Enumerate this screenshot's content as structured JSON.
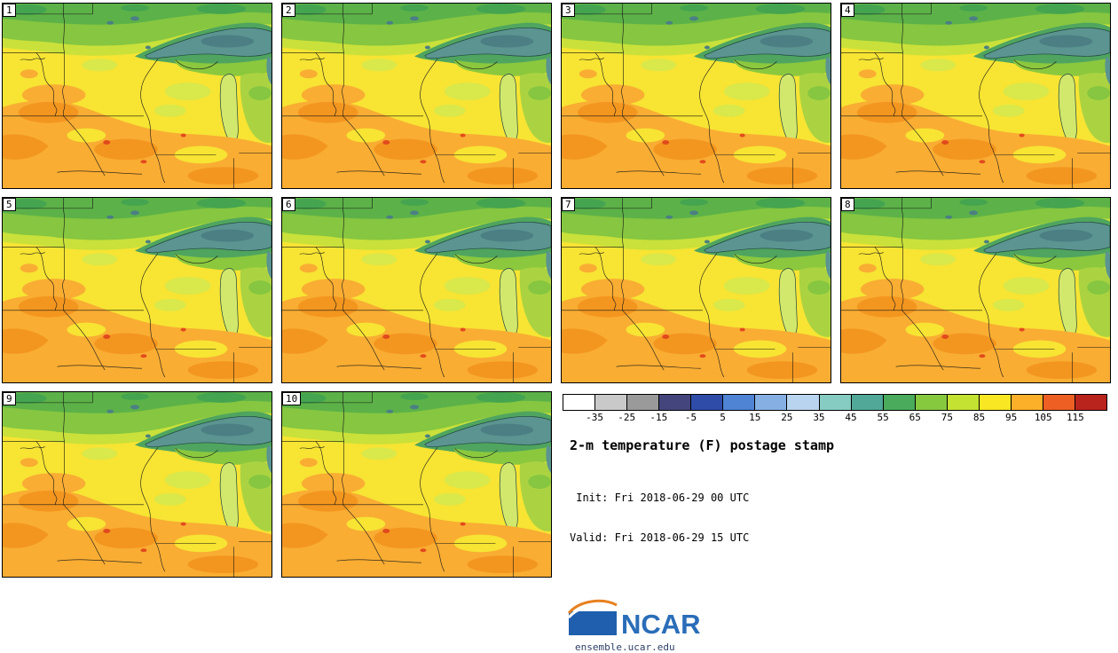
{
  "panels": [
    {
      "label": "1"
    },
    {
      "label": "2"
    },
    {
      "label": "3"
    },
    {
      "label": "4"
    },
    {
      "label": "5"
    },
    {
      "label": "6"
    },
    {
      "label": "7"
    },
    {
      "label": "8"
    },
    {
      "label": "9"
    },
    {
      "label": "10"
    }
  ],
  "colorbar": {
    "ticks": [
      "-35",
      "-25",
      "-15",
      "-5",
      "5",
      "15",
      "25",
      "35",
      "45",
      "55",
      "65",
      "75",
      "85",
      "95",
      "105",
      "115"
    ],
    "cell_colors": [
      "#ffffff",
      "#c9c9c9",
      "#9a9a9a",
      "#45457e",
      "#2f4da8",
      "#4f83d4",
      "#86b0e4",
      "#b9d4ee",
      "#86ccc3",
      "#52a898",
      "#4aab5c",
      "#86c93f",
      "#c4e232",
      "#f8e722",
      "#fcaf28",
      "#ee5f24",
      "#b9241d"
    ]
  },
  "info": {
    "title": "2-m temperature (F) postage stamp",
    "init_line": " Init: Fri 2018-06-29 00 UTC",
    "valid_line": "Valid: Fri 2018-06-29 15 UTC"
  },
  "logo": {
    "text": "NCAR",
    "site": "ensemble.ucar.edu",
    "brand_color": "#2a6db8"
  }
}
